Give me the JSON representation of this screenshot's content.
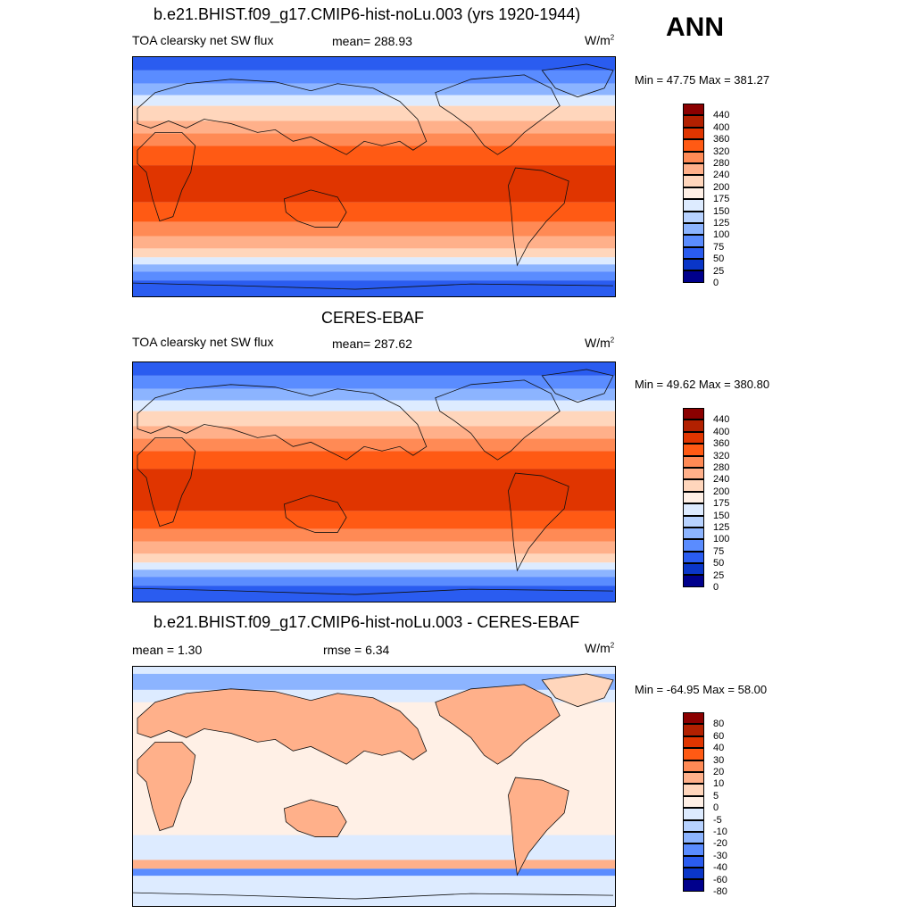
{
  "season": "ANN",
  "panels": [
    {
      "title": "b.e21.BHIST.f09_g17.CMIP6-hist-noLu.003 (yrs 1920-1944)",
      "left": "TOA clearsky net SW flux",
      "mid": "mean= 288.93",
      "units": "W/m",
      "units_sup": "2",
      "minmax": "Min =  47.75 Max = 381.27",
      "colorbar": {
        "labels": [
          "440",
          "400",
          "360",
          "320",
          "280",
          "240",
          "200",
          "175",
          "150",
          "125",
          "100",
          "75",
          "50",
          "25",
          "0"
        ],
        "colors": [
          "#8b0000",
          "#b22000",
          "#e03500",
          "#ff5a14",
          "#ff8a55",
          "#ffb08a",
          "#ffd6bc",
          "#fff0e6",
          "#ddebff",
          "#b7d2ff",
          "#8cb4ff",
          "#5a8cff",
          "#2a5cf0",
          "#0a36c8",
          "#00008c"
        ]
      }
    },
    {
      "title": "CERES-EBAF",
      "left": "TOA clearsky net SW flux",
      "mid": "mean= 287.62",
      "units": "W/m",
      "units_sup": "2",
      "minmax": "Min =  49.62 Max = 380.80",
      "colorbar": {
        "labels": [
          "440",
          "400",
          "360",
          "320",
          "280",
          "240",
          "200",
          "175",
          "150",
          "125",
          "100",
          "75",
          "50",
          "25",
          "0"
        ],
        "colors": [
          "#8b0000",
          "#b22000",
          "#e03500",
          "#ff5a14",
          "#ff8a55",
          "#ffb08a",
          "#ffd6bc",
          "#fff0e6",
          "#ddebff",
          "#b7d2ff",
          "#8cb4ff",
          "#5a8cff",
          "#2a5cf0",
          "#0a36c8",
          "#00008c"
        ]
      }
    },
    {
      "title": "b.e21.BHIST.f09_g17.CMIP6-hist-noLu.003 - CERES-EBAF",
      "left": "mean =   1.30",
      "mid": "rmse =   6.34",
      "units": "W/m",
      "units_sup": "2",
      "minmax": "Min = -64.95 Max =  58.00",
      "colorbar": {
        "labels": [
          "80",
          "60",
          "40",
          "30",
          "20",
          "10",
          "5",
          "0",
          "-5",
          "-10",
          "-20",
          "-30",
          "-40",
          "-60",
          "-80"
        ],
        "colors": [
          "#8b0000",
          "#b22000",
          "#e03500",
          "#ff5a14",
          "#ff8a55",
          "#ffb08a",
          "#ffd6bc",
          "#fff0e6",
          "#ddebff",
          "#b7d2ff",
          "#8cb4ff",
          "#5a8cff",
          "#2a5cf0",
          "#0a36c8",
          "#00008c"
        ]
      }
    }
  ]
}
